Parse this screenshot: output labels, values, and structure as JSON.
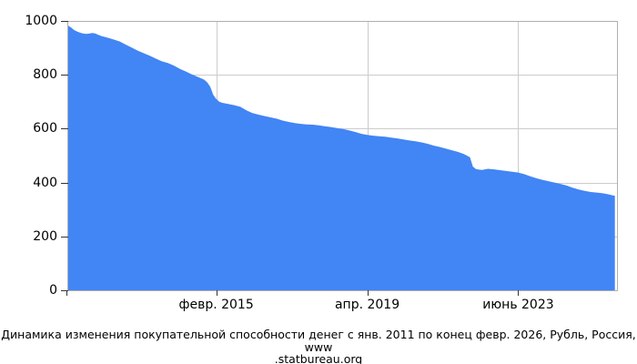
{
  "chart_data": {
    "type": "area",
    "caption_line1": "Динамика изменения покупательной способности денег с янв. 2011 по конец февр. 2026, Рубль, Россия, www",
    "caption_line2": ".statbureau.org",
    "fill_color": "#4285f4",
    "grid_color": "#cccccc",
    "border_color": "#b0b0b0",
    "tick_color": "#333333",
    "ylim": [
      0,
      1000
    ],
    "y_ticks": [
      0,
      200,
      400,
      600,
      800,
      1000
    ],
    "x_start": "2011-01",
    "x_total_months": 182,
    "grid": true,
    "x_ticks": [
      {
        "date": "2015-02",
        "label": "февр. 2015"
      },
      {
        "date": "2019-04",
        "label": "апр. 2019"
      },
      {
        "date": "2023-06",
        "label": "июнь 2023"
      }
    ],
    "points": [
      [
        "2011-01",
        982
      ],
      [
        "2011-02",
        975
      ],
      [
        "2011-03",
        966
      ],
      [
        "2011-04",
        960
      ],
      [
        "2011-05",
        956
      ],
      [
        "2011-06",
        953
      ],
      [
        "2011-07",
        952
      ],
      [
        "2011-08",
        953
      ],
      [
        "2011-09",
        955
      ],
      [
        "2011-10",
        953
      ],
      [
        "2011-11",
        948
      ],
      [
        "2011-12",
        944
      ],
      [
        "2012-02",
        938
      ],
      [
        "2012-04",
        931
      ],
      [
        "2012-06",
        924
      ],
      [
        "2012-08",
        912
      ],
      [
        "2012-10",
        901
      ],
      [
        "2012-12",
        890
      ],
      [
        "2013-02",
        880
      ],
      [
        "2013-04",
        871
      ],
      [
        "2013-06",
        860
      ],
      [
        "2013-08",
        850
      ],
      [
        "2013-10",
        844
      ],
      [
        "2013-12",
        834
      ],
      [
        "2014-02",
        822
      ],
      [
        "2014-04",
        812
      ],
      [
        "2014-06",
        801
      ],
      [
        "2014-08",
        792
      ],
      [
        "2014-10",
        782
      ],
      [
        "2014-11",
        772
      ],
      [
        "2014-12",
        756
      ],
      [
        "2015-01",
        726
      ],
      [
        "2015-02",
        710
      ],
      [
        "2015-03",
        700
      ],
      [
        "2015-04",
        696
      ],
      [
        "2015-06",
        692
      ],
      [
        "2015-08",
        687
      ],
      [
        "2015-10",
        681
      ],
      [
        "2015-12",
        668
      ],
      [
        "2016-02",
        658
      ],
      [
        "2016-04",
        652
      ],
      [
        "2016-06",
        647
      ],
      [
        "2016-08",
        642
      ],
      [
        "2016-10",
        637
      ],
      [
        "2016-12",
        630
      ],
      [
        "2017-02",
        625
      ],
      [
        "2017-04",
        621
      ],
      [
        "2017-06",
        618
      ],
      [
        "2017-08",
        616
      ],
      [
        "2017-10",
        615
      ],
      [
        "2017-12",
        612
      ],
      [
        "2018-02",
        609
      ],
      [
        "2018-04",
        606
      ],
      [
        "2018-06",
        602
      ],
      [
        "2018-08",
        599
      ],
      [
        "2018-10",
        594
      ],
      [
        "2018-12",
        588
      ],
      [
        "2019-02",
        581
      ],
      [
        "2019-04",
        577
      ],
      [
        "2019-06",
        574
      ],
      [
        "2019-08",
        572
      ],
      [
        "2019-10",
        570
      ],
      [
        "2019-12",
        567
      ],
      [
        "2020-02",
        564
      ],
      [
        "2020-04",
        560
      ],
      [
        "2020-06",
        556
      ],
      [
        "2020-08",
        553
      ],
      [
        "2020-10",
        549
      ],
      [
        "2020-12",
        544
      ],
      [
        "2021-02",
        537
      ],
      [
        "2021-04",
        532
      ],
      [
        "2021-06",
        526
      ],
      [
        "2021-08",
        520
      ],
      [
        "2021-10",
        514
      ],
      [
        "2021-12",
        506
      ],
      [
        "2022-01",
        500
      ],
      [
        "2022-02",
        494
      ],
      [
        "2022-03",
        459
      ],
      [
        "2022-04",
        450
      ],
      [
        "2022-05",
        448
      ],
      [
        "2022-06",
        447
      ],
      [
        "2022-07",
        449
      ],
      [
        "2022-08",
        451
      ],
      [
        "2022-10",
        449
      ],
      [
        "2022-12",
        446
      ],
      [
        "2023-02",
        443
      ],
      [
        "2023-04",
        440
      ],
      [
        "2023-06",
        437
      ],
      [
        "2023-08",
        431
      ],
      [
        "2023-10",
        423
      ],
      [
        "2023-12",
        416
      ],
      [
        "2024-02",
        410
      ],
      [
        "2024-04",
        405
      ],
      [
        "2024-06",
        400
      ],
      [
        "2024-08",
        395
      ],
      [
        "2024-10",
        389
      ],
      [
        "2024-12",
        381
      ],
      [
        "2025-02",
        374
      ],
      [
        "2025-04",
        369
      ],
      [
        "2025-06",
        365
      ],
      [
        "2025-08",
        363
      ],
      [
        "2025-10",
        360
      ],
      [
        "2025-12",
        356
      ],
      [
        "2026-01",
        353
      ],
      [
        "2026-02",
        351
      ]
    ]
  }
}
